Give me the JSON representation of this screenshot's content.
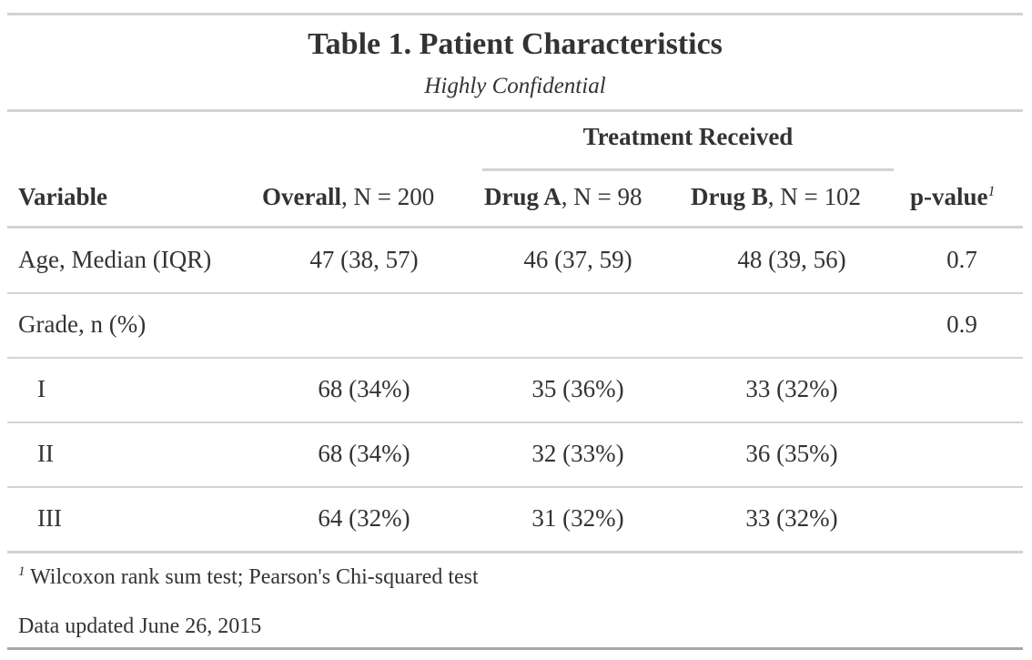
{
  "table": {
    "title": "Table 1. Patient Characteristics",
    "subtitle": "Highly Confidential",
    "spanner": "Treatment Received",
    "headers": {
      "variable": "Variable",
      "overall_bold": "Overall",
      "overall_rest": ", N = 200",
      "drug_a_bold": "Drug A",
      "drug_a_rest": ", N = 98",
      "drug_b_bold": "Drug B",
      "drug_b_rest": ", N = 102",
      "pvalue": "p-value",
      "pvalue_mark": "1"
    },
    "rows": [
      {
        "label": "Age, Median (IQR)",
        "overall": "47 (38, 57)",
        "drug_a": "46 (37, 59)",
        "drug_b": "48 (39, 56)",
        "p": "0.7"
      },
      {
        "label": "Grade, n (%)",
        "overall": "",
        "drug_a": "",
        "drug_b": "",
        "p": "0.9"
      },
      {
        "label": "I",
        "overall": "68 (34%)",
        "drug_a": "35 (36%)",
        "drug_b": "33 (32%)",
        "p": ""
      },
      {
        "label": "II",
        "overall": "68 (34%)",
        "drug_a": "32 (33%)",
        "drug_b": "36 (35%)",
        "p": ""
      },
      {
        "label": "III",
        "overall": "64 (32%)",
        "drug_a": "31 (32%)",
        "drug_b": "33 (32%)",
        "p": ""
      }
    ],
    "footnote_mark": "1",
    "footnote": "Wilcoxon rank sum test; Pearson's Chi-squared test",
    "source_note": "Data updated June 26, 2015"
  }
}
